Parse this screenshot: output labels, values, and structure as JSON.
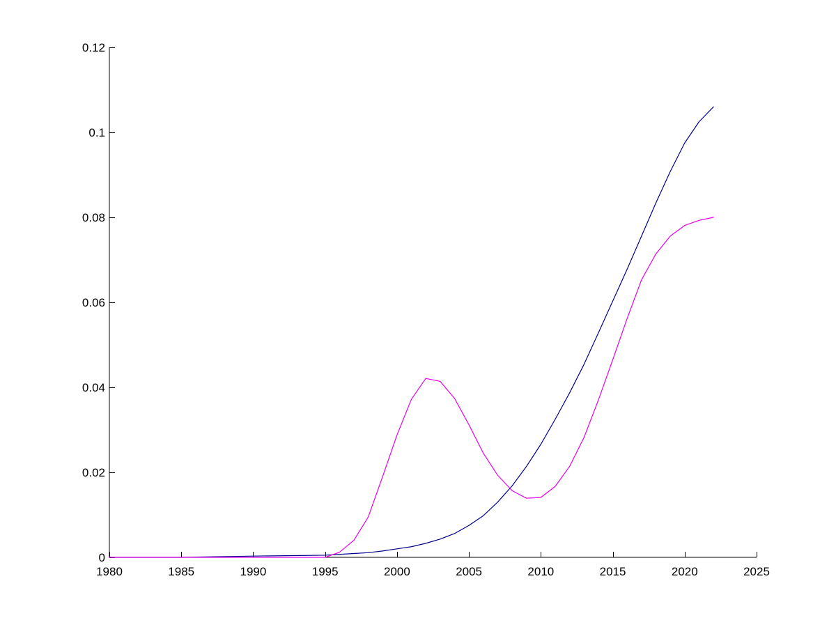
{
  "chart_data": {
    "type": "line",
    "title": "",
    "xlabel": "",
    "ylabel": "",
    "xlim": [
      1980,
      2025
    ],
    "ylim": [
      0,
      0.12
    ],
    "grid": false,
    "legend": "none",
    "xticks": [
      1980,
      1985,
      1990,
      1995,
      2000,
      2005,
      2010,
      2015,
      2020,
      2025
    ],
    "xtick_labels": [
      "1980",
      "1985",
      "1990",
      "1995",
      "2000",
      "2005",
      "2010",
      "2015",
      "2020",
      "2025"
    ],
    "yticks": [
      0,
      0.02,
      0.04,
      0.06,
      0.08,
      0.1,
      0.12
    ],
    "ytick_labels": [
      "0",
      "0.02",
      "0.04",
      "0.06",
      "0.08",
      "0.1",
      "0.12"
    ],
    "series": [
      {
        "color": "#00008B",
        "x": [
          1980,
          1985,
          1990,
          1995,
          1996,
          1997,
          1998,
          1999,
          2000,
          2001,
          2002,
          2003,
          2004,
          2005,
          2006,
          2007,
          2008,
          2009,
          2010,
          2011,
          2012,
          2013,
          2014,
          2015,
          2016,
          2017,
          2018,
          2019,
          2020,
          2021,
          2022
        ],
        "y": [
          0.0,
          0.0,
          0.0003,
          0.0005,
          0.0007,
          0.0009,
          0.0011,
          0.0015,
          0.002,
          0.0025,
          0.0033,
          0.0043,
          0.0056,
          0.0075,
          0.0098,
          0.013,
          0.0168,
          0.0214,
          0.0266,
          0.0325,
          0.0387,
          0.0454,
          0.0528,
          0.0603,
          0.0678,
          0.0756,
          0.0834,
          0.0908,
          0.0975,
          0.1025,
          0.106
        ]
      },
      {
        "color": "#E600E6",
        "x": [
          1980,
          1985,
          1990,
          1995,
          1996,
          1997,
          1998,
          1999,
          2000,
          2001,
          2002,
          2003,
          2004,
          2005,
          2006,
          2007,
          2008,
          2009,
          2010,
          2011,
          2012,
          2013,
          2014,
          2015,
          2016,
          2017,
          2018,
          2019,
          2020,
          2021,
          2022
        ],
        "y": [
          0.0,
          0.0,
          0.0,
          0.0,
          0.0012,
          0.004,
          0.0095,
          0.019,
          0.0288,
          0.0372,
          0.0421,
          0.0414,
          0.0374,
          0.0312,
          0.0245,
          0.0193,
          0.0157,
          0.0139,
          0.0141,
          0.0167,
          0.0214,
          0.0282,
          0.037,
          0.0465,
          0.0562,
          0.0653,
          0.0714,
          0.0756,
          0.0781,
          0.0793,
          0.08
        ]
      }
    ]
  }
}
